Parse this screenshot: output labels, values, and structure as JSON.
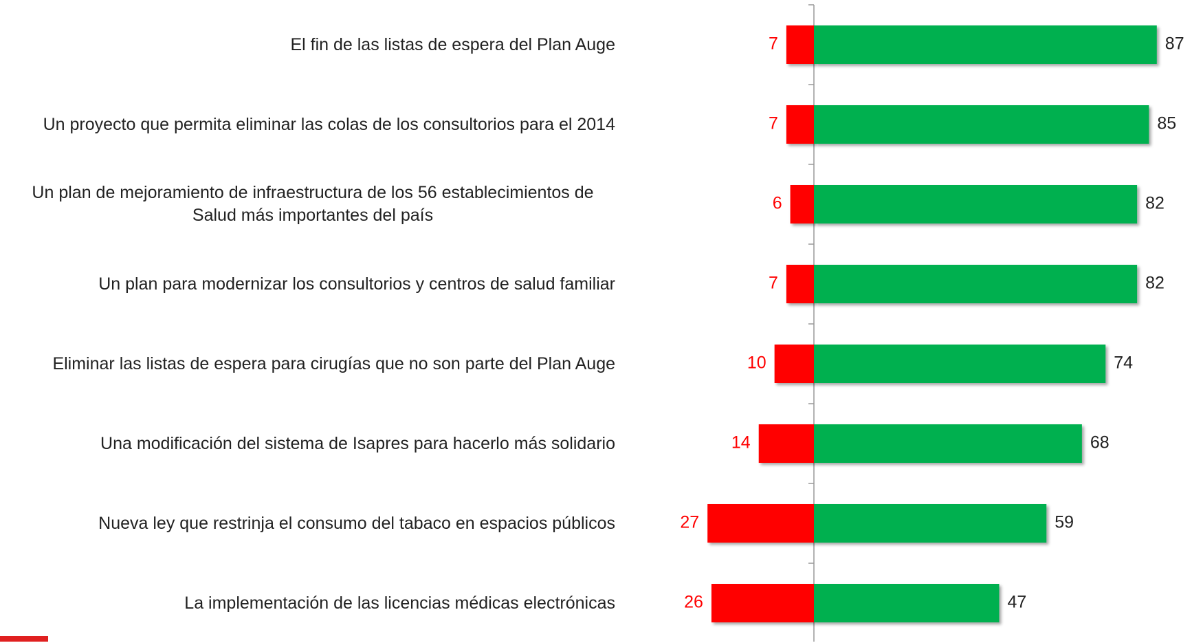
{
  "chart_data": {
    "type": "diverging-bar",
    "categories": [
      "El fin de las listas de espera del Plan Auge",
      "Un proyecto que permita eliminar las colas de los consultorios para el 2014",
      "Un plan de mejoramiento de infraestructura de los 56 establecimientos de Salud más importantes del país",
      "Un plan para modernizar los consultorios y centros de salud familiar",
      "Eliminar las listas de espera para cirugías que no son parte del Plan Auge",
      "Una modificación del sistema de Isapres para hacerlo más solidario",
      "Nueva ley que restrinja el consumo del tabaco en espacios públicos",
      "La implementación de las licencias médicas electrónicas"
    ],
    "series": [
      {
        "color": "#ff0000",
        "side": "left",
        "values": [
          7,
          7,
          6,
          7,
          10,
          14,
          27,
          26
        ]
      },
      {
        "color": "#00b050",
        "side": "right",
        "values": [
          87,
          85,
          82,
          82,
          74,
          68,
          59,
          47
        ]
      }
    ],
    "xlim": [
      -30,
      90
    ]
  }
}
